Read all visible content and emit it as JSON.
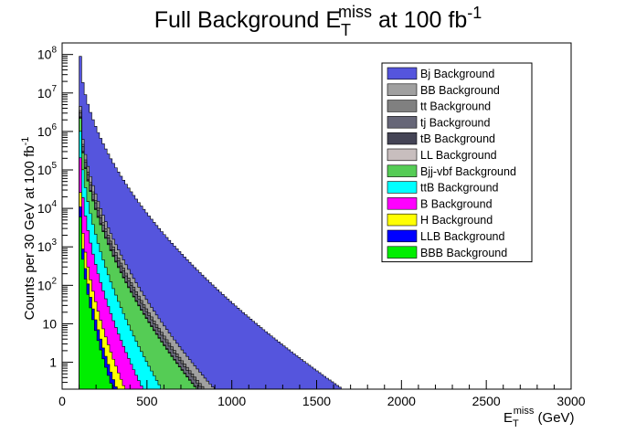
{
  "chart_data": {
    "type": "area",
    "stacked": true,
    "title": {
      "main": "Full Background E",
      "sub": "T",
      "sup": "miss",
      "rest": " at 100 fb",
      "sup2": "-1"
    },
    "xlabel": {
      "main": "E",
      "sub": "T",
      "sup": "miss",
      "rest": " (GeV)"
    },
    "ylabel": {
      "main": "Counts per 30 GeV at 100 fb",
      "sup": "-1"
    },
    "xlim": [
      0,
      3000
    ],
    "ylim": [
      0.2,
      200000000
    ],
    "ylog": true,
    "x_ticks": [
      "0",
      "500",
      "1000",
      "1500",
      "2000",
      "2500",
      "3000"
    ],
    "y_ticks": [
      {
        "base": "1",
        "exp": ""
      },
      {
        "base": "10",
        "exp": ""
      },
      {
        "base": "10",
        "exp": "2"
      },
      {
        "base": "10",
        "exp": "3"
      },
      {
        "base": "10",
        "exp": "4"
      },
      {
        "base": "10",
        "exp": "5"
      },
      {
        "base": "10",
        "exp": "6"
      },
      {
        "base": "10",
        "exp": "7"
      },
      {
        "base": "10",
        "exp": "8"
      }
    ],
    "grid": false,
    "legend_position": "top-right",
    "x_start": 100,
    "bin_width": 15,
    "series": [
      {
        "name": "BBB Background",
        "color": "#00ee00",
        "start": 6000,
        "end": 1480,
        "r": 2.65
      },
      {
        "name": "LLB Background",
        "color": "#0000ff",
        "start": 5000,
        "end": 1510,
        "r": 2.65
      },
      {
        "name": "H Background",
        "color": "#ffff00",
        "start": 15000,
        "end": 1610,
        "r": 2.62
      },
      {
        "name": "B Background",
        "color": "#ff00ff",
        "start": 180000,
        "end": 1630,
        "r": 2.62
      },
      {
        "name": "ttB Background",
        "color": "#00ffff",
        "start": 800000,
        "end": 1720,
        "r": 2.6
      },
      {
        "name": "Bjj-vbf Background",
        "color": "#55cc55",
        "start": 1200000,
        "end": 2150,
        "r": 2.48
      },
      {
        "name": "LL Background",
        "color": "#c8bebe",
        "start": 40000,
        "end": 1900,
        "r": 2.65
      },
      {
        "name": "tB Background",
        "color": "#444455",
        "start": 150000,
        "end": 2100,
        "r": 2.65
      },
      {
        "name": "tj Background",
        "color": "#666677",
        "start": 700000,
        "end": 2250,
        "r": 2.58
      },
      {
        "name": "tt Background",
        "color": "#808080",
        "start": 400000,
        "end": 2300,
        "r": 2.6
      },
      {
        "name": "BB Background",
        "color": "#a0a0a0",
        "start": 1000000,
        "end": 2460,
        "r": 2.55
      },
      {
        "name": "Bj Background",
        "color": "#5555dd",
        "start": 85000000,
        "end": 2960,
        "r": 2.42
      }
    ]
  }
}
